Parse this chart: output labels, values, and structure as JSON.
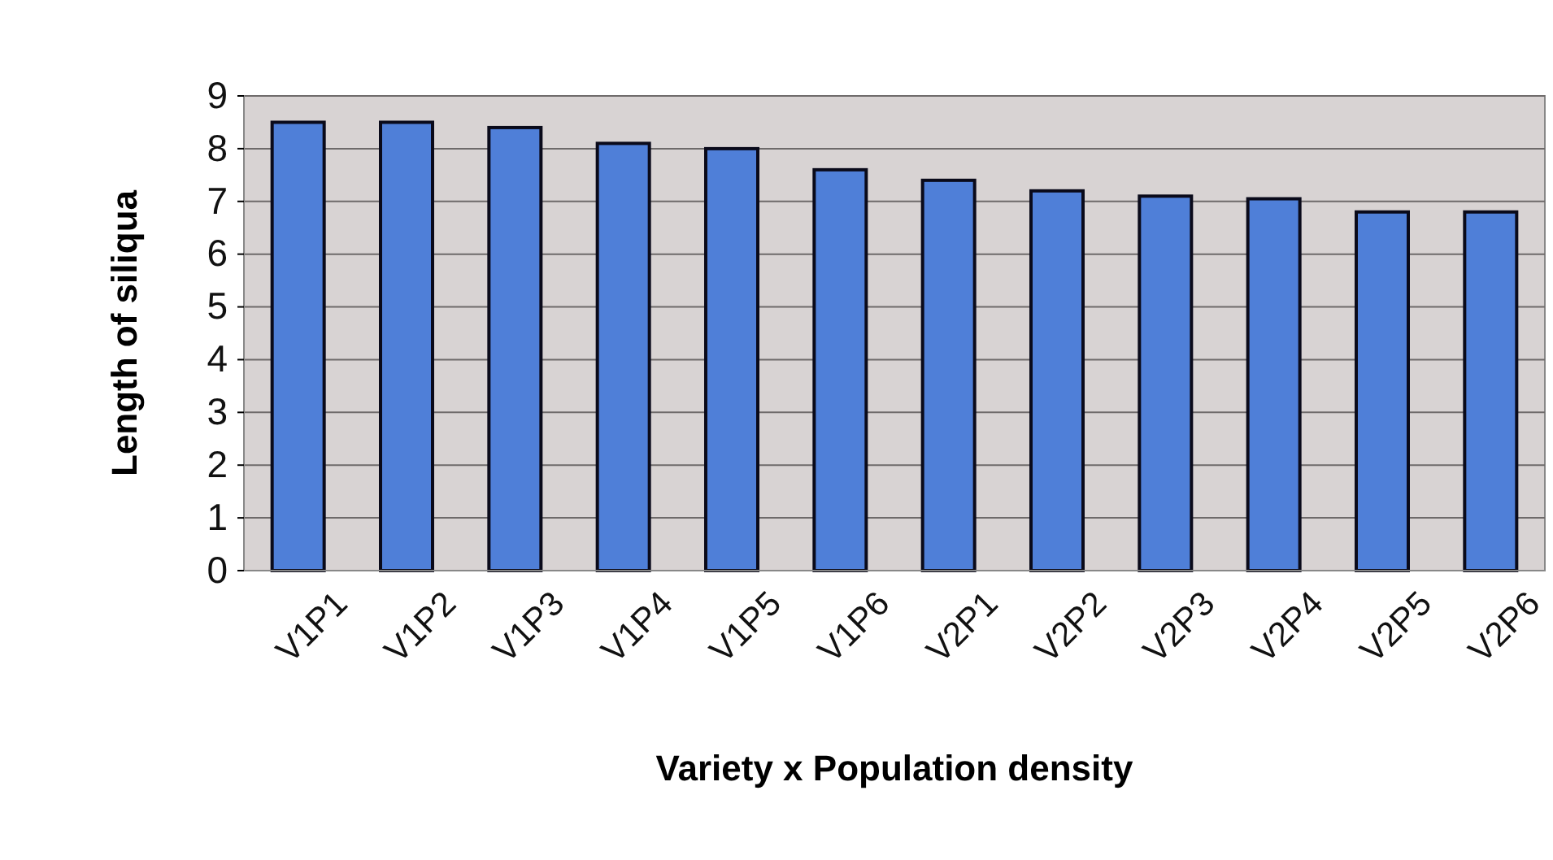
{
  "chart_data": {
    "type": "bar",
    "xlabel": "Variety x Population density",
    "ylabel": "Length of siliqua",
    "categories": [
      "V1P1",
      "V1P2",
      "V1P3",
      "V1P4",
      "V1P5",
      "V1P6",
      "V2P1",
      "V2P2",
      "V2P3",
      "V2P4",
      "V2P5",
      "V2P6"
    ],
    "values": [
      8.5,
      8.5,
      8.4,
      8.1,
      8.0,
      7.6,
      7.4,
      7.2,
      7.1,
      7.05,
      6.8,
      6.8
    ],
    "color": "#4f7fd8",
    "ylim": [
      0,
      9
    ],
    "yticks": [
      0,
      1,
      2,
      3,
      4,
      5,
      6,
      7,
      8,
      9
    ],
    "grid": "y"
  }
}
